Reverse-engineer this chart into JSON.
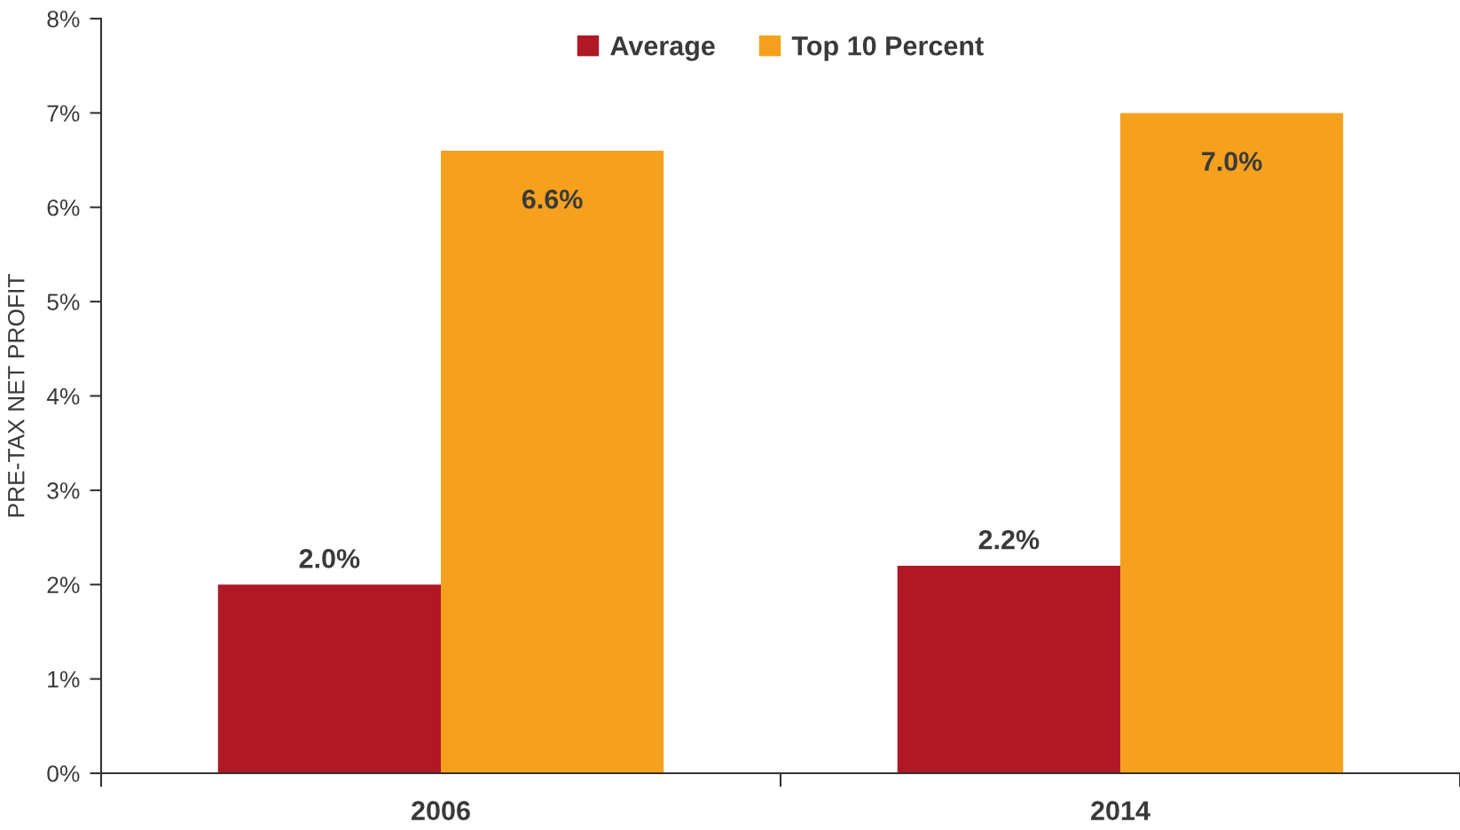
{
  "chart_data": {
    "type": "bar",
    "ylabel": "PRE-TAX NET PROFIT",
    "categories": [
      "2006",
      "2014"
    ],
    "series": [
      {
        "name": "Average",
        "color": "#b01825",
        "values": [
          2.0,
          2.2
        ],
        "value_labels": [
          "2.0%",
          "2.2%"
        ]
      },
      {
        "name": "Top 10 Percent",
        "color": "#f6a11e",
        "values": [
          6.6,
          7.0
        ],
        "value_labels": [
          "6.6%",
          "7.0%"
        ]
      }
    ],
    "ylim": [
      0,
      8
    ],
    "yticks": [
      {
        "value": 0,
        "label": "0%"
      },
      {
        "value": 1,
        "label": "1%"
      },
      {
        "value": 2,
        "label": "2%"
      },
      {
        "value": 3,
        "label": "3%"
      },
      {
        "value": 4,
        "label": "4%"
      },
      {
        "value": 5,
        "label": "5%"
      },
      {
        "value": 6,
        "label": "6%"
      },
      {
        "value": 7,
        "label": "7%"
      },
      {
        "value": 8,
        "label": "8%"
      }
    ],
    "legend": "top",
    "grid": false
  }
}
